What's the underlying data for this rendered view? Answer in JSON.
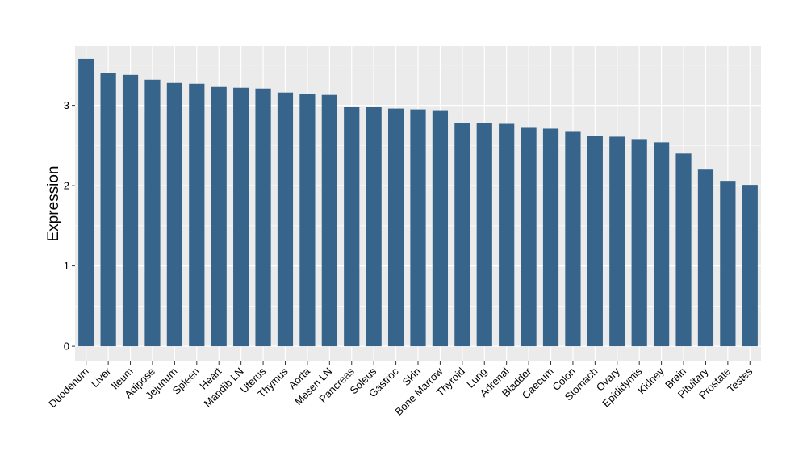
{
  "chart_data": {
    "type": "bar",
    "title": "",
    "xlabel": "",
    "ylabel": "Expression",
    "categories": [
      "Duodenum",
      "Liver",
      "Ileum",
      "Adipose",
      "Jejunum",
      "Spleen",
      "Heart",
      "Mandib LN",
      "Uterus",
      "Thymus",
      "Aorta",
      "Mesen LN",
      "Pancreas",
      "Soleus",
      "Gastroc",
      "Skin",
      "Bone Marrow",
      "Thyroid",
      "Lung",
      "Adrenal",
      "Bladder",
      "Caecum",
      "Colon",
      "Stomach",
      "Ovary",
      "Epididymis",
      "Kidney",
      "Brain",
      "Pituitary",
      "Prostate",
      "Testes"
    ],
    "values": [
      3.58,
      3.4,
      3.38,
      3.32,
      3.28,
      3.27,
      3.23,
      3.22,
      3.21,
      3.16,
      3.14,
      3.13,
      2.98,
      2.98,
      2.96,
      2.95,
      2.94,
      2.78,
      2.78,
      2.77,
      2.72,
      2.71,
      2.68,
      2.62,
      2.61,
      2.58,
      2.54,
      2.4,
      2.2,
      2.06,
      2.01
    ],
    "ylim": [
      -0.19,
      3.74
    ],
    "yticks": [
      0,
      1,
      2,
      3
    ],
    "ytick_labels": [
      "0",
      "1",
      "2",
      "3"
    ],
    "grid": true,
    "legend": "none",
    "colors": {
      "bar": "#36648B",
      "panel_background": "#EBEBEB",
      "grid": "#FFFFFF",
      "axis_text": "#000000"
    }
  }
}
